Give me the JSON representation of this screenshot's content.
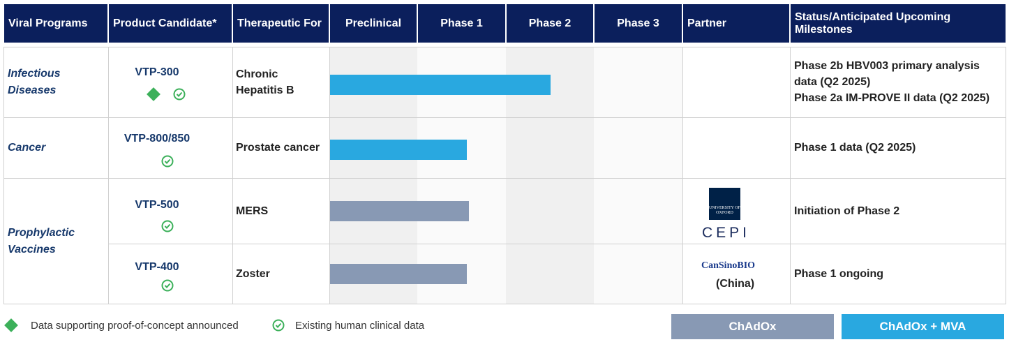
{
  "header": {
    "columns": [
      "Viral Programs",
      "Product Candidate*",
      "Therapeutic For",
      "Preclinical",
      "Phase 1",
      "Phase 2",
      "Phase 3",
      "Partner",
      "Status/Anticipated Upcoming Milestones"
    ]
  },
  "programs": [
    "Infectious Diseases",
    "Cancer",
    "Prophylactic Vaccines"
  ],
  "rows": [
    {
      "candidate": "VTP-300",
      "therapeutic": "Chronic Hepatitis B",
      "progress": 2.5,
      "color": "#29a8e0",
      "poc": true,
      "clinical": true,
      "partner": [],
      "milestones": [
        "Phase 2b HBV003 primary analysis data (Q2 2025)",
        "Phase 2a IM-PROVE II data (Q2 2025)"
      ]
    },
    {
      "candidate": "VTP-800/850",
      "therapeutic": "Prostate cancer",
      "progress": 1.55,
      "color": "#29a8e0",
      "poc": false,
      "clinical": true,
      "partner": [],
      "milestones": [
        "Phase 1 data (Q2 2025)"
      ]
    },
    {
      "candidate": "VTP-500",
      "therapeutic": "MERS",
      "progress": 1.57,
      "color": "#8899b4",
      "poc": false,
      "clinical": true,
      "partner": [
        "UNIVERSITY OF OXFORD",
        "CEPI"
      ],
      "milestones": [
        "Initiation of Phase 2"
      ]
    },
    {
      "candidate": "VTP-400",
      "therapeutic": "Zoster",
      "progress": 1.55,
      "color": "#8899b4",
      "poc": false,
      "clinical": true,
      "partner": [
        "CanSinoBIO",
        "(China)"
      ],
      "milestones": [
        "Phase 1 ongoing"
      ]
    }
  ],
  "legend": {
    "poc": "Data supporting proof-of-concept announced",
    "clinical": "Existing human clinical data",
    "platforms": [
      {
        "label": "ChAdOx",
        "color": "#8899b4"
      },
      {
        "label": "ChAdOx + MVA",
        "color": "#29a8e0"
      }
    ]
  }
}
